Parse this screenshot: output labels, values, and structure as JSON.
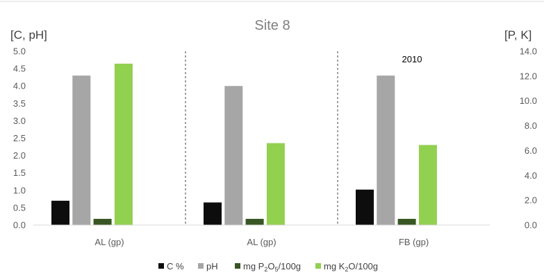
{
  "chart_data": {
    "type": "bar",
    "title": "Site 8",
    "y_left_label": "[C, pH]",
    "y_right_label": "[P, K]",
    "categories": [
      "AL (gp)",
      "AL (gp)",
      "FB (gp)"
    ],
    "annotation": "2010",
    "series": [
      {
        "name": "C %",
        "axis": "left",
        "color": "#0d0d0d",
        "values": [
          0.7,
          0.65,
          1.02
        ]
      },
      {
        "name": "pH",
        "axis": "left",
        "color": "#a6a6a6",
        "values": [
          4.3,
          4.0,
          4.3
        ]
      },
      {
        "name": "mg P2O5/100g",
        "name_parts": [
          "mg P",
          "2",
          "O",
          "5",
          "/100g"
        ],
        "axis": "right",
        "color": "#375623",
        "values": [
          0.5,
          0.5,
          0.5
        ]
      },
      {
        "name": "mg K2O/100g",
        "name_parts": [
          "mg K",
          "2",
          "O/100g"
        ],
        "axis": "right",
        "color": "#92d050",
        "values": [
          13.0,
          6.6,
          6.45
        ]
      }
    ],
    "y_left": {
      "min": 0,
      "max": 5,
      "step": 0.5,
      "ticks": [
        "0.0",
        "0.5",
        "1.0",
        "1.5",
        "2.0",
        "2.5",
        "3.0",
        "3.5",
        "4.0",
        "4.5",
        "5.0"
      ]
    },
    "y_right": {
      "min": 0,
      "max": 14,
      "step": 2,
      "ticks": [
        "0.0",
        "2.0",
        "4.0",
        "6.0",
        "8.0",
        "10.0",
        "12.0",
        "14.0"
      ]
    },
    "grid": false,
    "legend_position": "bottom",
    "group_separators": "dashed"
  }
}
